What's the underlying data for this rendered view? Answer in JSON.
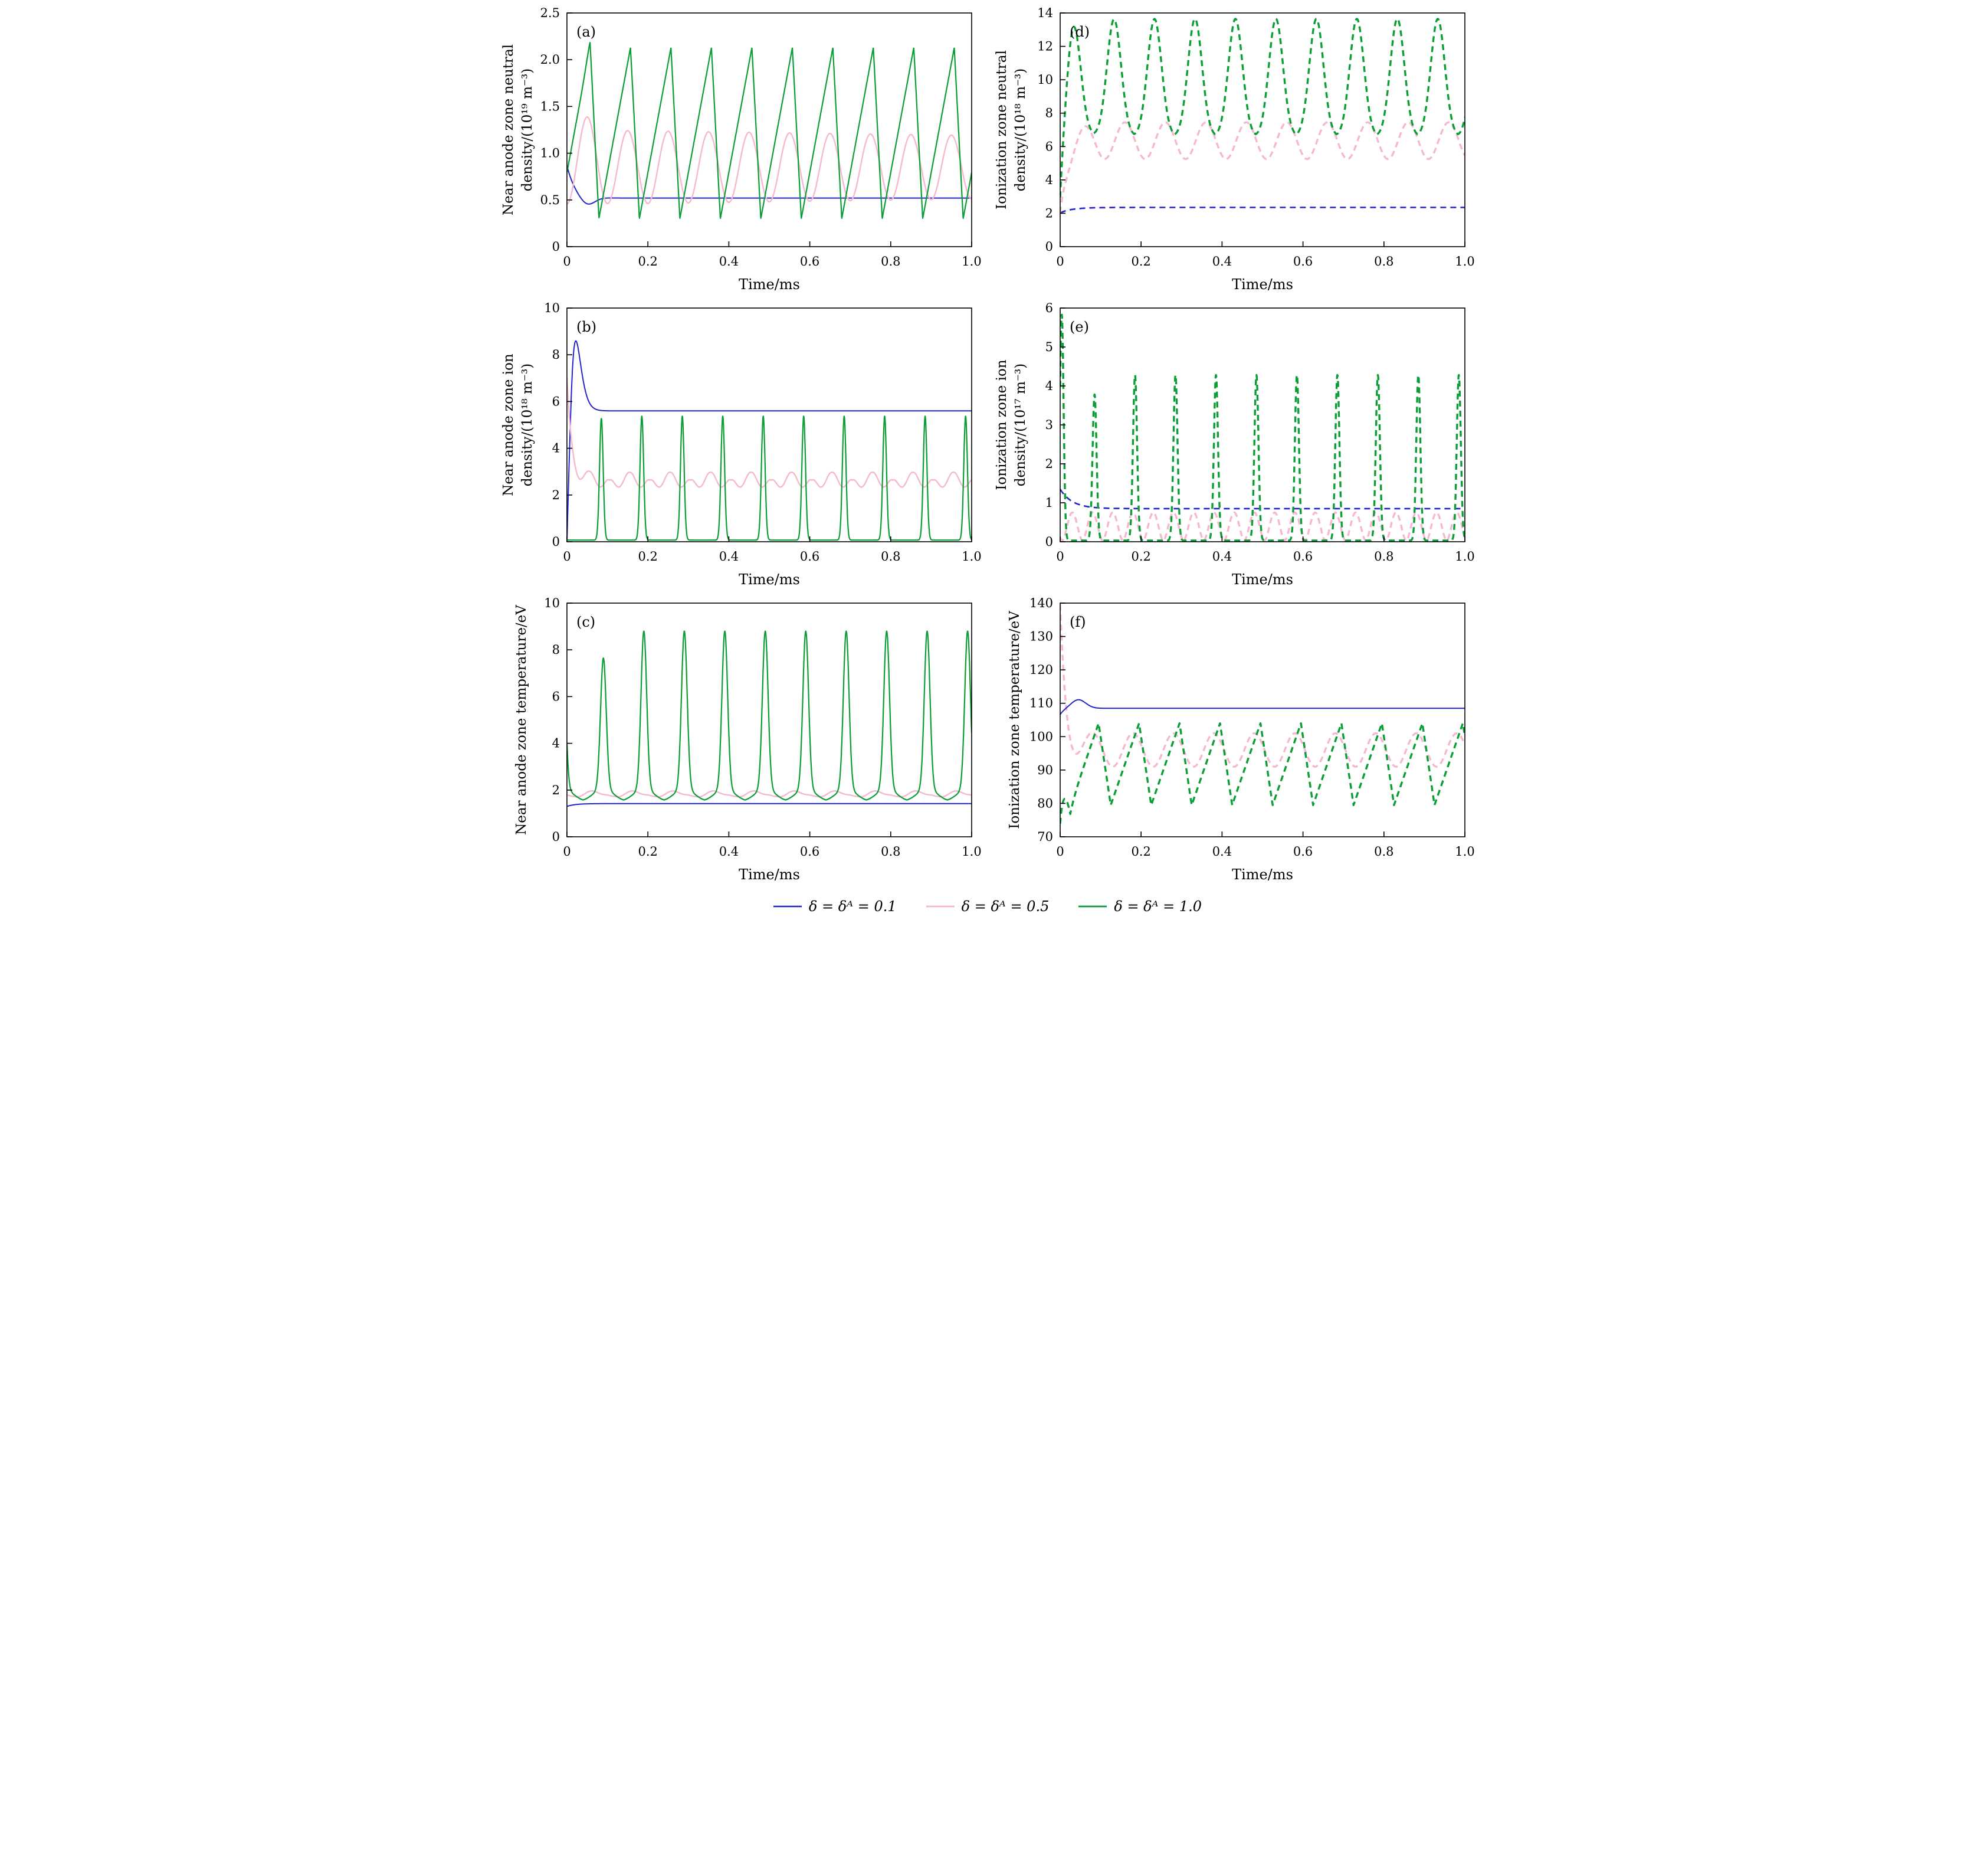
{
  "colors": {
    "blue": "#2222cf",
    "pink": "#f6b8d0",
    "green": "#0b9e36"
  },
  "legend": {
    "items": [
      {
        "label": "δ = δᴬ = 0.1",
        "color": "blue"
      },
      {
        "label": "δ = δᴬ = 0.5",
        "color": "pink"
      },
      {
        "label": "δ = δᴬ = 1.0",
        "color": "green"
      }
    ]
  },
  "chart_data": [
    {
      "id": "a",
      "type": "line",
      "letter": "(a)",
      "xlabel": "Time/ms",
      "ylabel_lines": [
        "Near anode zone neutral",
        "density/(10¹⁹ m⁻³)"
      ],
      "xlim": [
        0,
        1
      ],
      "ylim": [
        0,
        2.5
      ],
      "xticks": [
        0,
        0.2,
        0.4,
        0.6,
        0.8,
        1
      ],
      "xtick_labels": [
        "0",
        "0.2",
        "0.4",
        "0.6",
        "0.8",
        "1.0"
      ],
      "yticks": [
        0,
        0.5,
        1,
        1.5,
        2,
        2.5
      ],
      "ytick_labels": [
        "0",
        "0.5",
        "1.0",
        "1.5",
        "2.0",
        "2.5"
      ],
      "series": [
        {
          "name": "delta-0p1",
          "color": "blue",
          "dash": null,
          "width": 2,
          "terms": [
            {
              "fn": "const",
              "v": 0.52
            },
            {
              "fn": "expDecay",
              "a": 0.35,
              "tau": 0.02
            },
            {
              "fn": "gauss",
              "h": -0.09,
              "c": 0.05,
              "w": 0.018
            }
          ]
        },
        {
          "name": "delta-0p5",
          "color": "pink",
          "dash": null,
          "width": 2.4,
          "terms": [
            {
              "fn": "const",
              "v": 0.85
            },
            {
              "fn": "sine",
              "amp": 0.4,
              "ampEnd": 0.34,
              "period": 0.1,
              "t0": 0.025
            },
            {
              "fn": "gauss",
              "h": 0.14,
              "c": 0.05,
              "w": 0.02
            }
          ]
        },
        {
          "name": "delta-1p0",
          "color": "green",
          "dash": null,
          "width": 2.2,
          "terms": [
            {
              "fn": "saw",
              "tPeak": 0.057,
              "period": 0.1,
              "fallFrac": 0.22,
              "min": 0.3,
              "max": 2.13
            },
            {
              "fn": "gauss",
              "h": 0.06,
              "c": 0.057,
              "w": 0.01
            }
          ]
        }
      ]
    },
    {
      "id": "b",
      "type": "line",
      "letter": "(b)",
      "xlabel": "Time/ms",
      "ylabel_lines": [
        "Near anode zone ion",
        "density/(10¹⁸ m⁻³)"
      ],
      "xlim": [
        0,
        1
      ],
      "ylim": [
        0,
        10
      ],
      "xticks": [
        0,
        0.2,
        0.4,
        0.6,
        0.8,
        1
      ],
      "xtick_labels": [
        "0",
        "0.2",
        "0.4",
        "0.6",
        "0.8",
        "1.0"
      ],
      "yticks": [
        0,
        2,
        4,
        6,
        8,
        10
      ],
      "ytick_labels": [
        "0",
        "2",
        "4",
        "6",
        "8",
        "10"
      ],
      "series": [
        {
          "name": "delta-0p1",
          "color": "blue",
          "dash": null,
          "width": 2,
          "terms": [
            {
              "fn": "rise",
              "a": 5.6,
              "tau": 0.008
            },
            {
              "fn": "hump",
              "h": 3.4,
              "tp": 0.02,
              "k": 3
            }
          ]
        },
        {
          "name": "delta-0p5",
          "color": "pink",
          "dash": null,
          "width": 2.4,
          "terms": [
            {
              "fn": "const",
              "v": 0.32
            },
            {
              "fn": "spikes",
              "period": 0.1,
              "tFirst": 0.055,
              "w": 0.02,
              "h": 2.6
            },
            {
              "fn": "spikes",
              "period": 0.1,
              "tFirst": 0.105,
              "w": 0.018,
              "h": 2.2
            },
            {
              "fn": "expDecay",
              "a": 4.4,
              "tau": 0.012
            }
          ]
        },
        {
          "name": "delta-1p0",
          "color": "green",
          "dash": null,
          "width": 2.2,
          "terms": [
            {
              "fn": "const",
              "v": 0.07
            },
            {
              "fn": "spikes",
              "period": 0.1,
              "tFirst": 0.085,
              "w": 0.0045,
              "h": 5.3,
              "hFirst": 5.2
            }
          ]
        }
      ]
    },
    {
      "id": "c",
      "type": "line",
      "letter": "(c)",
      "xlabel": "Time/ms",
      "ylabel_lines": [
        "Near anode zone temperature/eV"
      ],
      "xlim": [
        0,
        1
      ],
      "ylim": [
        0,
        10
      ],
      "xticks": [
        0,
        0.2,
        0.4,
        0.6,
        0.8,
        1
      ],
      "xtick_labels": [
        "0",
        "0.2",
        "0.4",
        "0.6",
        "0.8",
        "1.0"
      ],
      "yticks": [
        0,
        2,
        4,
        6,
        8,
        10
      ],
      "ytick_labels": [
        "0",
        "2",
        "4",
        "6",
        "8",
        "10"
      ],
      "series": [
        {
          "name": "delta-0p1",
          "color": "blue",
          "dash": null,
          "width": 2,
          "terms": [
            {
              "fn": "const",
              "v": 1.42
            },
            {
              "fn": "expDecay",
              "a": -0.12,
              "tau": 0.02
            }
          ]
        },
        {
          "name": "delta-0p5",
          "color": "pink",
          "dash": null,
          "width": 2.4,
          "terms": [
            {
              "fn": "const",
              "v": 1.45
            },
            {
              "fn": "spikes",
              "period": 0.1,
              "tFirst": 0.06,
              "w": 0.02,
              "h": 0.5
            },
            {
              "fn": "spikes",
              "period": 0.1,
              "tFirst": 0.105,
              "w": 0.018,
              "h": 0.28
            }
          ]
        },
        {
          "name": "delta-1p0",
          "color": "green",
          "dash": null,
          "width": 2.2,
          "terms": [
            {
              "fn": "const",
              "v": 1.5
            },
            {
              "fn": "spikes",
              "period": 0.1,
              "tFirst": 0.09,
              "w": 0.007,
              "h": 6.75,
              "hFirst": 5.6
            },
            {
              "fn": "spikes",
              "period": 0.1,
              "tFirst": 0.09,
              "w": 0.025,
              "h": 0.55
            }
          ]
        }
      ]
    },
    {
      "id": "d",
      "type": "line",
      "letter": "(d)",
      "xlabel": "Time/ms",
      "ylabel_lines": [
        "Ionization zone neutral",
        "density/(10¹⁸ m⁻³)"
      ],
      "xlim": [
        0,
        1
      ],
      "ylim": [
        0,
        14
      ],
      "xticks": [
        0,
        0.2,
        0.4,
        0.6,
        0.8,
        1
      ],
      "xtick_labels": [
        "0",
        "0.2",
        "0.4",
        "0.6",
        "0.8",
        "1.0"
      ],
      "yticks": [
        0,
        2,
        4,
        6,
        8,
        10,
        12,
        14
      ],
      "ytick_labels": [
        "0",
        "2",
        "4",
        "6",
        "8",
        "10",
        "12",
        "14"
      ],
      "series": [
        {
          "name": "delta-0p1",
          "color": "blue",
          "dash": [
            10,
            7
          ],
          "width": 2.6,
          "terms": [
            {
              "fn": "const",
              "v": 2.35
            },
            {
              "fn": "expDecay",
              "a": -0.32,
              "tau": 0.03
            }
          ]
        },
        {
          "name": "delta-0p5",
          "color": "pink",
          "dash": [
            10,
            7
          ],
          "width": 3.4,
          "terms": [
            {
              "fn": "const",
              "v": 6.35
            },
            {
              "fn": "sine",
              "amp": 1.1,
              "period": 0.1,
              "t0": 0.035,
              "rampTau": 0.025
            },
            {
              "fn": "expDecay",
              "a": -4.3,
              "tau": 0.018
            }
          ]
        },
        {
          "name": "delta-1p0",
          "color": "green",
          "dash": [
            10,
            7
          ],
          "width": 3.4,
          "terms": [
            {
              "fn": "const",
              "v": 7.0
            },
            {
              "fn": "spikes",
              "period": 0.1,
              "tFirst": 0.033,
              "w": 0.017,
              "h": 6.3
            },
            {
              "fn": "sine",
              "amp": 0.35,
              "period": 0.1,
              "t0": 0.01,
              "rampTau": 0.05
            },
            {
              "fn": "expDecay",
              "a": -5.0,
              "tau": 0.012
            }
          ]
        }
      ]
    },
    {
      "id": "e",
      "type": "line",
      "letter": "(e)",
      "xlabel": "Time/ms",
      "ylabel_lines": [
        "Ionization zone ion",
        "density/(10¹⁷ m⁻³)"
      ],
      "xlim": [
        0,
        1
      ],
      "ylim": [
        0,
        6
      ],
      "xticks": [
        0,
        0.2,
        0.4,
        0.6,
        0.8,
        1
      ],
      "xtick_labels": [
        "0",
        "0.2",
        "0.4",
        "0.6",
        "0.8",
        "1.0"
      ],
      "yticks": [
        0,
        1,
        2,
        3,
        4,
        5,
        6
      ],
      "ytick_labels": [
        "0",
        "1",
        "2",
        "3",
        "4",
        "5",
        "6"
      ],
      "series": [
        {
          "name": "delta-0p1",
          "color": "blue",
          "dash": [
            10,
            7
          ],
          "width": 2.6,
          "terms": [
            {
              "fn": "const",
              "v": 0.85
            },
            {
              "fn": "expDecay",
              "a": 0.5,
              "tau": 0.03
            }
          ]
        },
        {
          "name": "delta-0p5",
          "color": "pink",
          "dash": [
            10,
            7
          ],
          "width": 3.4,
          "terms": [
            {
              "fn": "const",
              "v": 0.03
            },
            {
              "fn": "absSine",
              "amp": 0.72,
              "period": 0.05,
              "t0": 0.005,
              "p": 1.8
            }
          ]
        },
        {
          "name": "delta-1p0",
          "color": "green",
          "dash": [
            10,
            7
          ],
          "width": 3.4,
          "terms": [
            {
              "fn": "const",
              "v": 0.03
            },
            {
              "fn": "spikes",
              "period": 0.1,
              "tFirst": 0.085,
              "w": 0.005,
              "h": 4.25,
              "hFirst": 3.75
            },
            {
              "fn": "gauss",
              "c": 0.004,
              "h": 5.8,
              "w": 0.0045
            }
          ]
        }
      ]
    },
    {
      "id": "f",
      "type": "line",
      "letter": "(f)",
      "xlabel": "Time/ms",
      "ylabel_lines": [
        "Ionization zone temperature/eV"
      ],
      "xlim": [
        0,
        1
      ],
      "ylim": [
        70,
        140
      ],
      "xticks": [
        0,
        0.2,
        0.4,
        0.6,
        0.8,
        1
      ],
      "xtick_labels": [
        "0",
        "0.2",
        "0.4",
        "0.6",
        "0.8",
        "1.0"
      ],
      "yticks": [
        70,
        80,
        90,
        100,
        110,
        120,
        130,
        140
      ],
      "ytick_labels": [
        "70",
        "80",
        "90",
        "100",
        "110",
        "120",
        "130",
        "140"
      ],
      "series": [
        {
          "name": "delta-0p5",
          "color": "pink",
          "dash": [
            10,
            7
          ],
          "width": 3.4,
          "terms": [
            {
              "fn": "const",
              "v": 96
            },
            {
              "fn": "sine",
              "amp": 5,
              "period": 0.1,
              "t0": 0.055
            },
            {
              "fn": "expDecay",
              "a": 42,
              "tau": 0.015
            }
          ]
        },
        {
          "name": "delta-1p0",
          "color": "green",
          "dash": [
            10,
            7
          ],
          "width": 3.4,
          "terms": [
            {
              "fn": "saw",
              "tPeak": 0.095,
              "period": 0.1,
              "fallFrac": 0.3,
              "min": 79.5,
              "max": 104
            },
            {
              "fn": "expDecay",
              "a": -26,
              "tau": 0.011
            }
          ]
        },
        {
          "name": "delta-0p1",
          "color": "blue",
          "dash": null,
          "width": 2,
          "terms": [
            {
              "fn": "const",
              "v": 108.5
            },
            {
              "fn": "gauss",
              "c": 0.045,
              "h": 2.6,
              "w": 0.018
            },
            {
              "fn": "expDecay",
              "a": -2,
              "tau": 0.012
            }
          ]
        }
      ]
    }
  ]
}
